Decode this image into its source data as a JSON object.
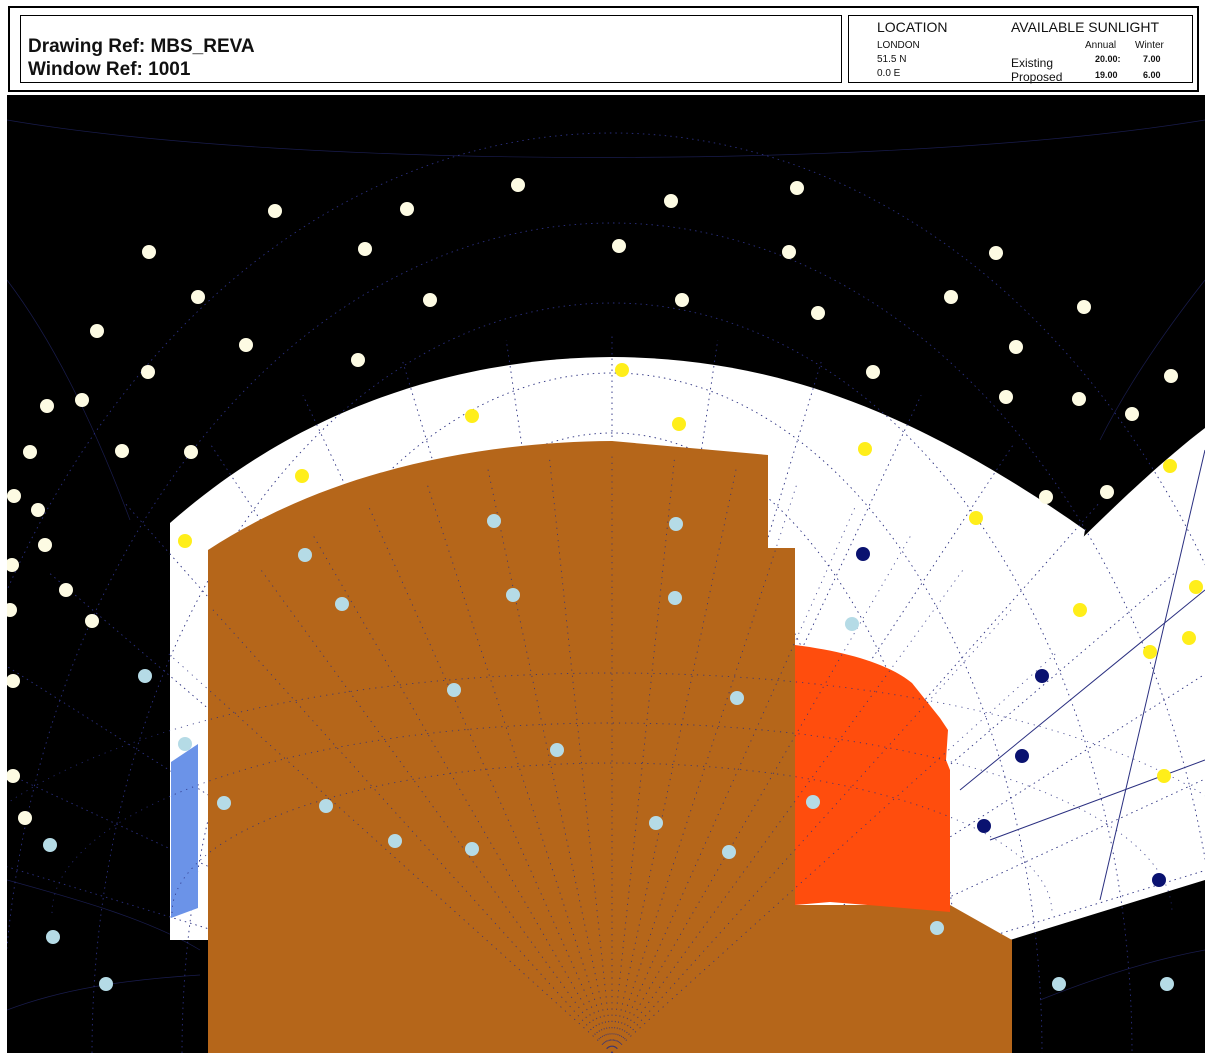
{
  "header": {
    "drawing_ref": "Drawing Ref: MBS_REVA",
    "window_ref": "Window Ref: 1001",
    "location_title": "LOCATION",
    "location_city": "LONDON",
    "location_lat": "51.5 N",
    "location_lon": "0.0 E",
    "sunlight_title": "AVAILABLE SUNLIGHT",
    "col_annual": "Annual",
    "col_winter": "Winter",
    "row_existing": "Existing",
    "row_proposed": "Proposed",
    "existing_annual": "20.00:",
    "existing_winter": "7.00",
    "proposed_annual": "19.00",
    "proposed_winter": "6.00"
  },
  "colors": {
    "sky": "#000000",
    "visible_sky": "#ffffff",
    "existing_obstruction": "#b5661a",
    "proposed_obstruction": "#ff4d0d",
    "window_panel": "#6b93e8",
    "sun_point_sky": "#fdfbe3",
    "sun_point_available": "#ffee1a",
    "sun_point_blocked_light": "#b5dbe6",
    "sun_point_lost": "#0a1270",
    "grid_line": "#2a2f80"
  }
}
